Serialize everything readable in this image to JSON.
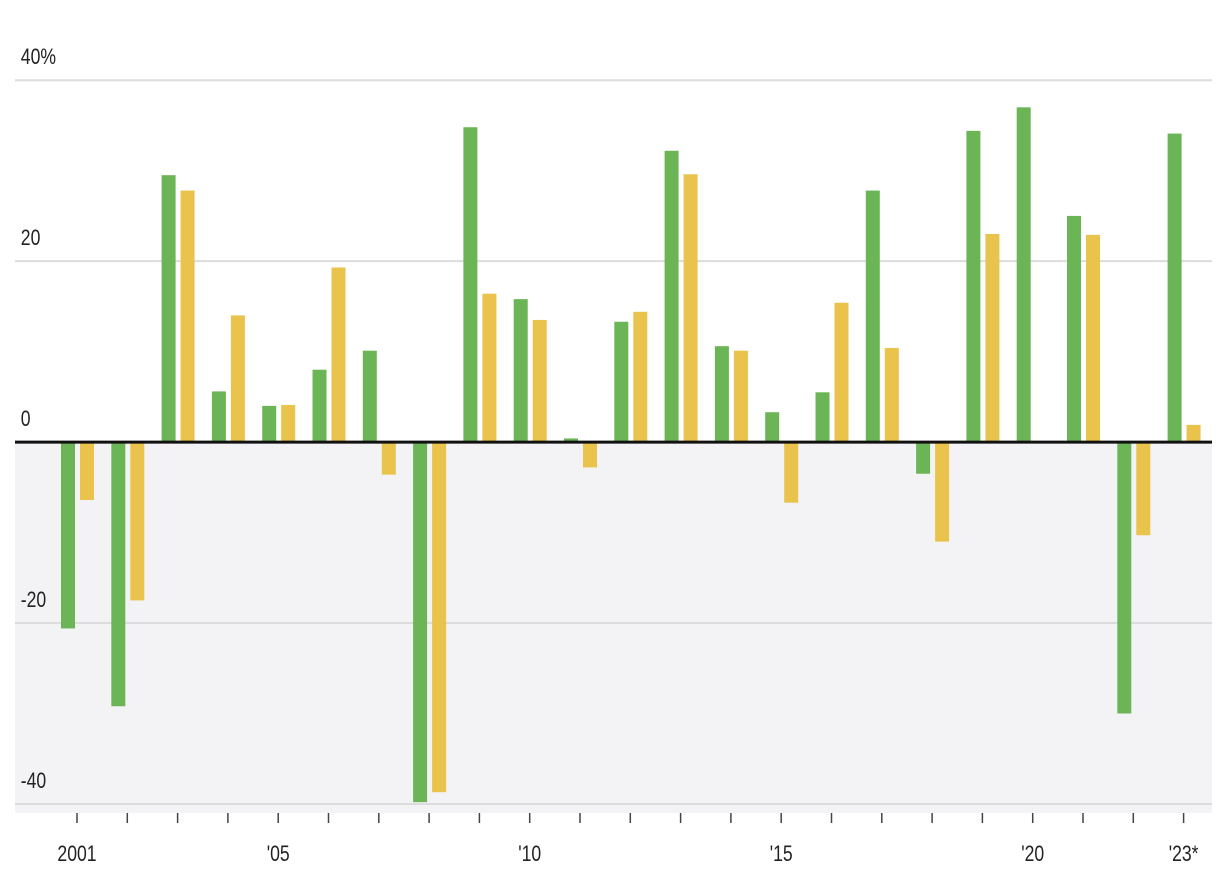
{
  "chart_data": {
    "type": "bar",
    "categories": [
      "2001",
      null,
      null,
      null,
      "'05",
      null,
      null,
      null,
      null,
      "'10",
      null,
      null,
      null,
      null,
      "'15",
      null,
      null,
      null,
      null,
      "'20",
      null,
      null,
      "'23*"
    ],
    "series": [
      {
        "color": "#6cb556",
        "values": [
          -20.6,
          -29.2,
          29.5,
          5.6,
          4.0,
          8.0,
          10.1,
          -39.8,
          34.8,
          15.8,
          0.4,
          13.3,
          32.2,
          10.6,
          3.3,
          5.5,
          27.8,
          -3.5,
          34.4,
          37.0,
          25.0,
          -30.0,
          34.1
        ]
      },
      {
        "color": "#e9c34b",
        "values": [
          -6.4,
          -17.5,
          27.8,
          14.0,
          4.1,
          19.3,
          -3.6,
          -38.7,
          16.4,
          13.5,
          -2.8,
          14.4,
          29.6,
          10.1,
          -6.7,
          15.4,
          10.4,
          -11.0,
          23.0,
          null,
          22.9,
          -10.3,
          1.9
        ]
      }
    ],
    "ylim": [
      -41,
      44
    ],
    "yticks": [
      {
        "value": 40,
        "label": "40%"
      },
      20,
      0,
      -20,
      -40
    ],
    "grid": true
  }
}
